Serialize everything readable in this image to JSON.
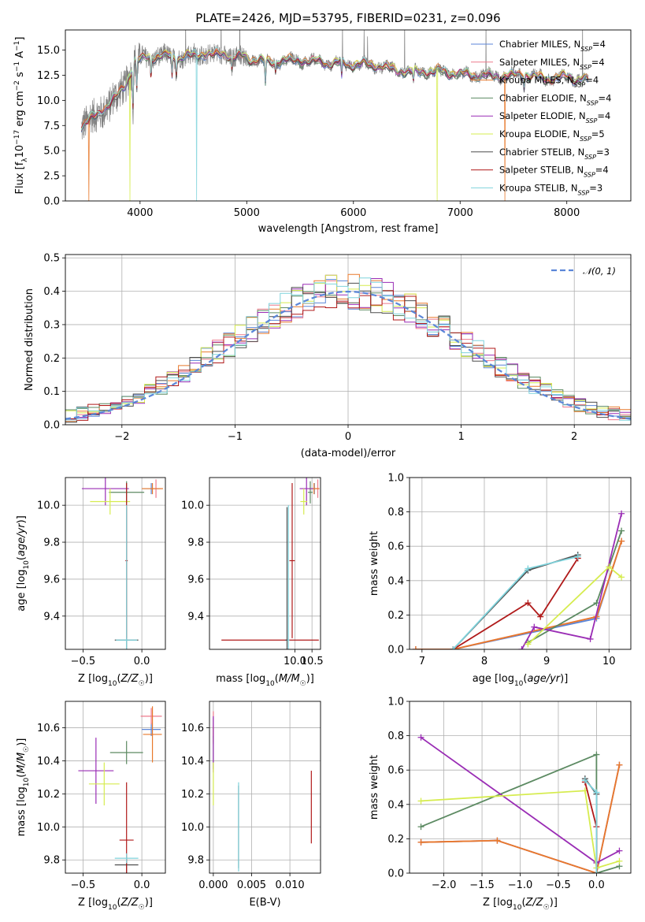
{
  "figure_title": "PLATE=2426, MJD=53795, FIBERID=0231, z=0.096",
  "colors": {
    "Chabrier MILES": "#5b86d8",
    "Salpeter MILES": "#ee7a8c",
    "Kroupa MILES": "#e8792b",
    "Chabrier ELODIE": "#5c8a62",
    "Salpeter ELODIE": "#9a2db5",
    "Kroupa ELODIE": "#d6ec4f",
    "Chabrier STELIB": "#4d4d4d",
    "Salpeter STELIB": "#b01a1a",
    "Kroupa STELIB": "#7fd3dc",
    "data": "#808080",
    "normal": "#5b86d8"
  },
  "chart_data": [
    {
      "id": "spectrum",
      "type": "line",
      "title": "PLATE=2426, MJD=53795, FIBERID=0231, z=0.096",
      "xlabel": "wavelength [Angstrom, rest frame]",
      "ylabel": "Flux [f_λ 10^-17 erg cm^-2 s^-1 A^-1]",
      "xlim": [
        3300,
        8600
      ],
      "ylim": [
        0,
        17
      ],
      "xticks": [
        4000,
        5000,
        6000,
        7000,
        8000
      ],
      "yticks": [
        0.0,
        2.5,
        5.0,
        7.5,
        10.0,
        12.5,
        15.0
      ],
      "ytick_labels": [
        "0.0",
        "2.5",
        "5.0",
        "7.5",
        "10.0",
        "12.5",
        "15.0"
      ],
      "grid": false,
      "legend_position": "top-right",
      "legend": [
        {
          "model": "Chabrier MILES",
          "text": "Chabrier MILES, N",
          "sub": "SSP",
          "suffix": "=4"
        },
        {
          "model": "Salpeter MILES",
          "text": "Salpeter MILES, N",
          "sub": "SSP",
          "suffix": "=4"
        },
        {
          "model": "Kroupa MILES",
          "text": "Kroupa MILES, N",
          "sub": "SSP",
          "suffix": "=4"
        },
        {
          "model": "Chabrier ELODIE",
          "text": "Chabrier ELODIE, N",
          "sub": "SSP",
          "suffix": "=4"
        },
        {
          "model": "Salpeter ELODIE",
          "text": "Salpeter ELODIE, N",
          "sub": "SSP",
          "suffix": "=4"
        },
        {
          "model": "Kroupa ELODIE",
          "text": "Kroupa ELODIE, N",
          "sub": "SSP",
          "suffix": "=5"
        },
        {
          "model": "Chabrier STELIB",
          "text": "Chabrier STELIB, N",
          "sub": "SSP",
          "suffix": "=3"
        },
        {
          "model": "Salpeter STELIB",
          "text": "Salpeter STELIB, N",
          "sub": "SSP",
          "suffix": "=4"
        },
        {
          "model": "Kroupa STELIB",
          "text": "Kroupa STELIB, N",
          "sub": "SSP",
          "suffix": "=3"
        }
      ],
      "continuum_anchor_points": [
        [
          3450,
          7.4
        ],
        [
          3600,
          8.6
        ],
        [
          3800,
          10.5
        ],
        [
          3880,
          12.0
        ],
        [
          3950,
          13.8
        ],
        [
          4050,
          14.3
        ],
        [
          4200,
          14.4
        ],
        [
          4400,
          14.3
        ],
        [
          4600,
          14.6
        ],
        [
          4800,
          14.5
        ],
        [
          5000,
          14.2
        ],
        [
          5200,
          13.8
        ],
        [
          5400,
          14.0
        ],
        [
          5600,
          13.9
        ],
        [
          5800,
          13.7
        ],
        [
          6000,
          13.6
        ],
        [
          6200,
          13.5
        ],
        [
          6400,
          13.0
        ],
        [
          6600,
          12.8
        ],
        [
          6800,
          12.9
        ],
        [
          7000,
          12.6
        ],
        [
          7200,
          12.5
        ],
        [
          7400,
          12.4
        ],
        [
          7600,
          12.6
        ],
        [
          7800,
          12.1
        ],
        [
          8000,
          12.3
        ],
        [
          8200,
          12.0
        ]
      ],
      "absorption_features": [
        [
          3934,
          4.0
        ],
        [
          3969,
          3.0
        ],
        [
          4102,
          2.0
        ],
        [
          4300,
          2.0
        ],
        [
          4340,
          1.5
        ],
        [
          4861,
          1.2
        ],
        [
          5175,
          2.2
        ],
        [
          5270,
          1.0
        ],
        [
          5890,
          1.5
        ],
        [
          6563,
          1.0
        ],
        [
          7600,
          1.2
        ]
      ],
      "model_spike_wavelengths": {
        "Kroupa MILES": [
          3520,
          7420
        ],
        "Kroupa ELODIE": [
          3905,
          6785
        ],
        "Kroupa STELIB": [
          4530
        ]
      }
    },
    {
      "id": "residuals",
      "type": "histogram",
      "xlabel": "(data-model)/error",
      "ylabel": "Normed distribution",
      "xlim": [
        -2.5,
        2.5
      ],
      "ylim": [
        0,
        0.51
      ],
      "xticks": [
        -2,
        -1,
        0,
        1,
        2
      ],
      "xtick_labels": [
        "−2",
        "−1",
        "0",
        "1",
        "2"
      ],
      "yticks": [
        0.0,
        0.1,
        0.2,
        0.3,
        0.4,
        0.5
      ],
      "ytick_labels": [
        "0.0",
        "0.1",
        "0.2",
        "0.3",
        "0.4",
        "0.5"
      ],
      "grid": true,
      "legend_position": "top-right",
      "legend": [
        {
          "text": "𝒩(0, 1)",
          "style": "dashed"
        }
      ],
      "bins": {
        "start": -2.5,
        "width": 0.1,
        "count": 50
      },
      "reference_curve": "normal(0,1)"
    },
    {
      "id": "age_vs_Z",
      "type": "errorbar",
      "xlabel": "Z [log₁₀(Z/Z☉)]",
      "ylabel": "age  [log₁₀(age/yr)]",
      "xlim": [
        -0.65,
        0.2
      ],
      "ylim": [
        9.22,
        10.15
      ],
      "xticks": [
        -0.5,
        0.0
      ],
      "xtick_labels": [
        "−0.5",
        "0.0"
      ],
      "yticks": [
        9.4,
        9.6,
        9.8,
        10.0
      ],
      "ytick_labels": [
        "9.4",
        "9.6",
        "9.8",
        "10.0"
      ],
      "grid": true,
      "points": [
        {
          "model": "Chabrier MILES",
          "x": 0.08,
          "xerr": 0.07,
          "y": 10.09,
          "yerr": 0.03
        },
        {
          "model": "Salpeter MILES",
          "x": 0.12,
          "xerr": 0.05,
          "y": 10.09,
          "yerr": 0.05
        },
        {
          "model": "Kroupa MILES",
          "x": 0.09,
          "xerr": 0.09,
          "y": 10.09,
          "yerr": 0.03
        },
        {
          "model": "Chabrier ELODIE",
          "x": -0.13,
          "xerr": 0.15,
          "y": 10.07,
          "yerr": 0.06
        },
        {
          "model": "Salpeter ELODIE",
          "x": -0.31,
          "xerr": 0.2,
          "y": 10.09,
          "yerr": 0.09
        },
        {
          "model": "Kroupa ELODIE",
          "x": -0.27,
          "xerr": 0.17,
          "y": 10.02,
          "yerr": 0.07
        },
        {
          "model": "Chabrier STELIB",
          "x": -0.13,
          "xerr": 0.1,
          "y": 9.27,
          "yerr": 0.72
        },
        {
          "model": "Salpeter STELIB",
          "x": -0.13,
          "xerr": 0.01,
          "y": 9.7,
          "yerr": 0.42
        },
        {
          "model": "Kroupa STELIB",
          "x": -0.13,
          "xerr": 0.09,
          "y": 9.27,
          "yerr": 0.73
        }
      ]
    },
    {
      "id": "age_vs_mass",
      "type": "errorbar",
      "xlabel": "mass [log₁₀(M/M☉)]",
      "xlim": [
        7.5,
        10.75
      ],
      "ylim": [
        9.22,
        10.15
      ],
      "xticks": [
        10.0,
        10.5
      ],
      "xtick_labels": [
        "10.0",
        "10.5"
      ],
      "yticks": [
        9.4,
        9.6,
        9.8,
        10.0
      ],
      "ytick_labels": [
        "9.4",
        "9.6",
        "9.8",
        "10.0"
      ],
      "grid": true,
      "points": [
        {
          "model": "Chabrier MILES",
          "x": 10.57,
          "xerr": 0.03,
          "y": 10.09,
          "yerr": 0.03
        },
        {
          "model": "Salpeter MILES",
          "x": 10.67,
          "xerr": 0.05,
          "y": 10.09,
          "yerr": 0.05
        },
        {
          "model": "Kroupa MILES",
          "x": 10.56,
          "xerr": 0.15,
          "y": 10.09,
          "yerr": 0.03
        },
        {
          "model": "Chabrier ELODIE",
          "x": 10.45,
          "xerr": 0.07,
          "y": 10.07,
          "yerr": 0.06
        },
        {
          "model": "Salpeter ELODIE",
          "x": 10.34,
          "xerr": 0.2,
          "y": 10.09,
          "yerr": 0.09
        },
        {
          "model": "Kroupa ELODIE",
          "x": 10.26,
          "xerr": 0.1,
          "y": 10.02,
          "yerr": 0.07
        },
        {
          "model": "Chabrier STELIB",
          "x": 9.77,
          "xerr": 0.05,
          "y": 9.27,
          "yerr": 0.72
        },
        {
          "model": "Salpeter STELIB",
          "x": 9.92,
          "xerr": 0.08,
          "y": 9.7,
          "yerr": 0.42
        },
        {
          "model": "Kroupa STELIB",
          "x": 9.81,
          "xerr": 0.03,
          "y": 9.27,
          "yerr": 0.73
        }
      ],
      "extra_hbars": [
        {
          "model": "Salpeter STELIB",
          "x0": 7.85,
          "x1": 10.7,
          "y": 9.27
        }
      ]
    },
    {
      "id": "massweight_vs_age",
      "type": "line",
      "xlabel": "age  [log₁₀(age/yr)]",
      "ylabel": "mass weight",
      "xlim": [
        6.8,
        10.35
      ],
      "ylim": [
        0,
        1.0
      ],
      "xticks": [
        7,
        8,
        9,
        10
      ],
      "xtick_labels": [
        "7",
        "8",
        "9",
        "10"
      ],
      "yticks": [
        0.0,
        0.2,
        0.4,
        0.6,
        0.8,
        1.0
      ],
      "ytick_labels": [
        "0.0",
        "0.2",
        "0.4",
        "0.6",
        "0.8",
        "1.0"
      ],
      "grid": true,
      "series": [
        {
          "model": "Chabrier MILES",
          "x": [
            6.9,
            7.5,
            9.8,
            10.2
          ],
          "y": [
            0.0,
            0.0,
            0.18,
            0.63
          ]
        },
        {
          "model": "Salpeter MILES",
          "x": [
            6.9,
            7.5,
            9.8,
            10.2
          ],
          "y": [
            0.0,
            0.0,
            0.19,
            0.63
          ]
        },
        {
          "model": "Kroupa MILES",
          "x": [
            6.9,
            7.5,
            9.8,
            10.2
          ],
          "y": [
            0.0,
            0.0,
            0.19,
            0.63
          ]
        },
        {
          "model": "Chabrier ELODIE",
          "x": [
            8.7,
            9.8,
            10.2
          ],
          "y": [
            0.04,
            0.27,
            0.69
          ]
        },
        {
          "model": "Salpeter ELODIE",
          "x": [
            8.6,
            8.8,
            9.7,
            10.2
          ],
          "y": [
            0.0,
            0.13,
            0.06,
            0.79
          ]
        },
        {
          "model": "Kroupa ELODIE",
          "x": [
            8.7,
            10.0,
            10.2
          ],
          "y": [
            0.03,
            0.48,
            0.42
          ]
        },
        {
          "model": "Chabrier STELIB",
          "x": [
            7.5,
            8.7,
            9.5
          ],
          "y": [
            0.0,
            0.46,
            0.55
          ]
        },
        {
          "model": "Salpeter STELIB",
          "x": [
            7.5,
            8.7,
            8.9,
            9.5
          ],
          "y": [
            0.0,
            0.27,
            0.19,
            0.53
          ]
        },
        {
          "model": "Kroupa STELIB",
          "x": [
            7.5,
            8.7,
            9.5
          ],
          "y": [
            0.0,
            0.47,
            0.54
          ]
        }
      ]
    },
    {
      "id": "mass_vs_Z",
      "type": "errorbar",
      "xlabel": "Z [log₁₀(Z/Z☉)]",
      "ylabel": "mass [log₁₀(M/M☉)]",
      "xlim": [
        -0.65,
        0.2
      ],
      "ylim": [
        9.72,
        10.76
      ],
      "xticks": [
        -0.5,
        0.0
      ],
      "xtick_labels": [
        "−0.5",
        "0.0"
      ],
      "yticks": [
        9.8,
        10.0,
        10.2,
        10.4,
        10.6
      ],
      "ytick_labels": [
        "9.8",
        "10.0",
        "10.2",
        "10.4",
        "10.6"
      ],
      "grid": true,
      "points": [
        {
          "model": "Chabrier MILES",
          "x": 0.08,
          "xerr": 0.08,
          "y": 10.59,
          "yerr": 0.04
        },
        {
          "model": "Salpeter MILES",
          "x": 0.08,
          "xerr": 0.09,
          "y": 10.67,
          "yerr": 0.05
        },
        {
          "model": "Kroupa MILES",
          "x": 0.09,
          "xerr": 0.08,
          "y": 10.56,
          "yerr": 0.17
        },
        {
          "model": "Chabrier ELODIE",
          "x": -0.13,
          "xerr": 0.14,
          "y": 10.45,
          "yerr": 0.07
        },
        {
          "model": "Salpeter ELODIE",
          "x": -0.39,
          "xerr": 0.15,
          "y": 10.34,
          "yerr": 0.2
        },
        {
          "model": "Kroupa ELODIE",
          "x": -0.32,
          "xerr": 0.13,
          "y": 10.26,
          "yerr": 0.13
        },
        {
          "model": "Chabrier STELIB",
          "x": -0.13,
          "xerr": 0.1,
          "y": 9.77,
          "yerr": 0.05
        },
        {
          "model": "Salpeter STELIB",
          "x": -0.13,
          "xerr": 0.06,
          "y": 9.92,
          "yerr": 0.35
        },
        {
          "model": "Kroupa STELIB",
          "x": -0.13,
          "xerr": 0.1,
          "y": 9.81,
          "yerr": 0.03
        }
      ]
    },
    {
      "id": "mass_vs_ebv",
      "type": "errorbar",
      "xlabel": "E(B-V)",
      "xlim": [
        -0.0005,
        0.014
      ],
      "ylim": [
        9.72,
        10.76
      ],
      "xticks": [
        0.0,
        0.005,
        0.01
      ],
      "xtick_labels": [
        "0.000",
        "0.005",
        "0.010"
      ],
      "yticks": [
        9.8,
        10.0,
        10.2,
        10.4,
        10.6
      ],
      "ytick_labels": [
        "9.8",
        "10.0",
        "10.2",
        "10.4",
        "10.6"
      ],
      "grid": true,
      "points": [
        {
          "model": "Chabrier MILES",
          "x": 0.0,
          "xerr": 0.0,
          "y": 10.6,
          "yerr": 0.06
        },
        {
          "model": "Salpeter MILES",
          "x": 0.0,
          "xerr": 0.0,
          "y": 10.6,
          "yerr": 0.1
        },
        {
          "model": "Kroupa MILES",
          "x": 0.0,
          "xerr": 0.0,
          "y": 10.56,
          "yerr": 0.05
        },
        {
          "model": "Chabrier ELODIE",
          "x": 0.0,
          "xerr": 0.0,
          "y": 10.45,
          "yerr": 0.1
        },
        {
          "model": "Salpeter ELODIE",
          "x": 0.0,
          "xerr": 0.0,
          "y": 10.5,
          "yerr": 0.17
        },
        {
          "model": "Kroupa ELODIE",
          "x": 0.0,
          "xerr": 0.0,
          "y": 10.26,
          "yerr": 0.13
        },
        {
          "model": "Chabrier STELIB",
          "x": 0.0033,
          "xerr": 0.0,
          "y": 10.0,
          "yerr": 0.25
        },
        {
          "model": "Salpeter STELIB",
          "x": 0.0128,
          "xerr": 0.0,
          "y": 10.12,
          "yerr": 0.22
        },
        {
          "model": "Kroupa STELIB",
          "x": 0.0033,
          "xerr": 0.0,
          "y": 10.0,
          "yerr": 0.27
        }
      ]
    },
    {
      "id": "massweight_vs_Z",
      "type": "line",
      "xlabel": "Z [log₁₀(Z/Z☉)]",
      "ylabel": "mass weight",
      "xlim": [
        -2.45,
        0.45
      ],
      "ylim": [
        0,
        1.0
      ],
      "xticks": [
        -2.0,
        -1.5,
        -1.0,
        -0.5,
        0.0
      ],
      "xtick_labels": [
        "−2.0",
        "−1.5",
        "−1.0",
        "−0.5",
        "0.0"
      ],
      "yticks": [
        0.0,
        0.2,
        0.4,
        0.6,
        0.8,
        1.0
      ],
      "ytick_labels": [
        "0.0",
        "0.2",
        "0.4",
        "0.6",
        "0.8",
        "1.0"
      ],
      "grid": true,
      "series": [
        {
          "model": "Chabrier MILES",
          "x": [
            -2.3,
            -1.3,
            0.0,
            0.3
          ],
          "y": [
            0.18,
            0.19,
            0.0,
            0.63
          ]
        },
        {
          "model": "Salpeter MILES",
          "x": [
            -2.3,
            -1.3,
            0.0,
            0.3
          ],
          "y": [
            0.18,
            0.19,
            0.0,
            0.63
          ]
        },
        {
          "model": "Kroupa MILES",
          "x": [
            -2.3,
            -1.3,
            0.0,
            0.3
          ],
          "y": [
            0.18,
            0.19,
            0.0,
            0.63
          ]
        },
        {
          "model": "Chabrier ELODIE",
          "x": [
            -2.3,
            0.0,
            0.0,
            0.3
          ],
          "y": [
            0.27,
            0.69,
            0.0,
            0.04
          ]
        },
        {
          "model": "Salpeter ELODIE",
          "x": [
            -2.3,
            0.0,
            0.3
          ],
          "y": [
            0.79,
            0.06,
            0.13
          ]
        },
        {
          "model": "Kroupa ELODIE",
          "x": [
            -2.3,
            -0.15,
            0.0,
            0.3
          ],
          "y": [
            0.42,
            0.48,
            0.03,
            0.07
          ]
        },
        {
          "model": "Chabrier STELIB",
          "x": [
            -0.15,
            0.0,
            0.0
          ],
          "y": [
            0.55,
            0.46,
            0.0
          ]
        },
        {
          "model": "Salpeter STELIB",
          "x": [
            -0.15,
            0.0,
            0.0
          ],
          "y": [
            0.53,
            0.27,
            0.0
          ]
        },
        {
          "model": "Kroupa STELIB",
          "x": [
            -0.15,
            0.0,
            0.0
          ],
          "y": [
            0.54,
            0.47,
            0.0
          ]
        }
      ]
    }
  ]
}
